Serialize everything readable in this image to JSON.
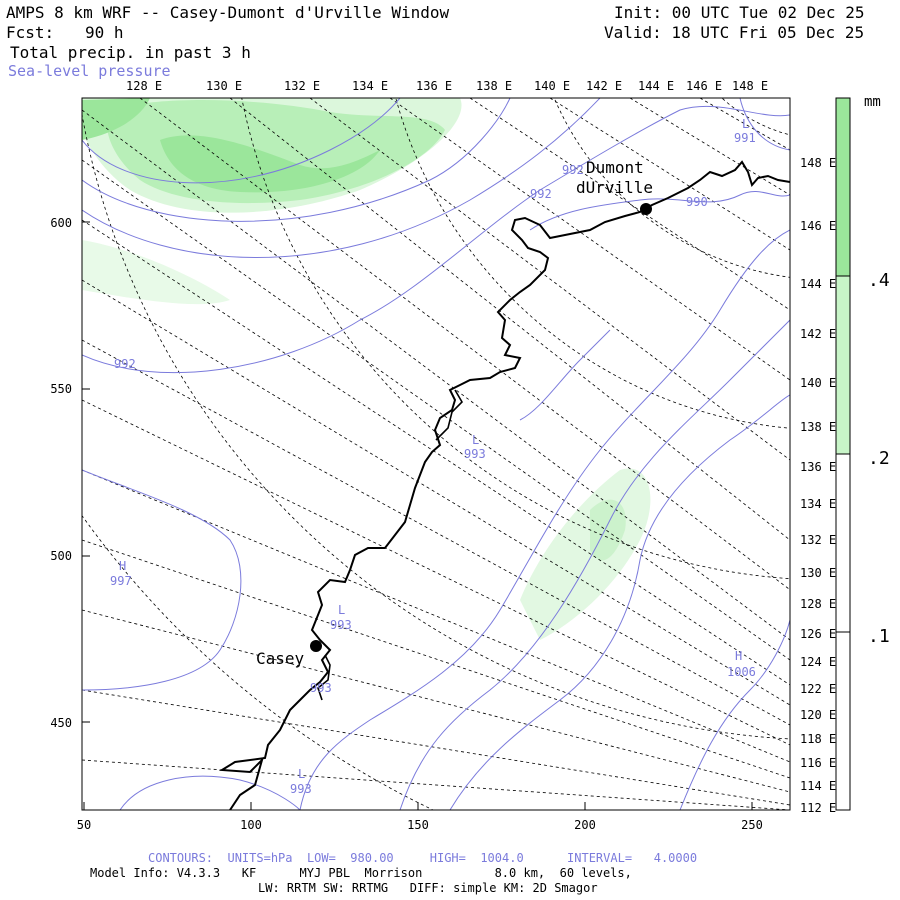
{
  "header": {
    "title": "AMPS 8 km WRF -- Casey-Dumont d'Urville Window",
    "forecast_label": "Fcst:",
    "forecast_value": "90 h",
    "field1": "Total precip. in past 3 h",
    "field2": "Sea-level pressure",
    "init": "Init: 00 UTC Tue 02 Dec 25",
    "valid": "Valid: 18 UTC Fri 05 Dec 25"
  },
  "map": {
    "top_lon_labels": [
      "128 E",
      "130 E",
      "132 E",
      "134 E",
      "136 E",
      "138 E",
      "140 E",
      "142 E",
      "144 E",
      "146 E",
      "148 E"
    ],
    "right_lon_labels": [
      "148 E",
      "146 E",
      "144 E",
      "142 E",
      "140 E",
      "138 E",
      "136 E",
      "134 E",
      "132 E",
      "130 E",
      "128 E",
      "126 E",
      "124 E",
      "122 E",
      "120 E",
      "118 E",
      "116 E",
      "114 E",
      "112 E"
    ],
    "left_y_labels": [
      "600",
      "550",
      "500",
      "450"
    ],
    "bottom_x_labels": [
      "50",
      "100",
      "150",
      "200",
      "250"
    ],
    "stations": [
      {
        "name_line1": "Dumont",
        "name_line2": "dUrville"
      },
      {
        "name_line1": "Casey",
        "name_line2": ""
      }
    ],
    "pressure_labels": [
      "992",
      "992",
      "992",
      "990",
      "991",
      "L",
      "993",
      "L",
      "H",
      "997",
      "993",
      "L",
      "993",
      "L",
      "993",
      "H",
      "1006"
    ]
  },
  "colorbar": {
    "unit": "mm",
    "levels": [
      ".4",
      ".2",
      ".1"
    ],
    "colors": [
      "#9be69b",
      "#c8f5c8",
      "#ffffff"
    ]
  },
  "footer": {
    "contours": "CONTOURS:  UNITS=hPa  LOW=  980.00     HIGH=  1004.0      INTERVAL=   4.0000",
    "model": "Model Info: V4.3.3   KF      MYJ PBL  Morrison          8.0 km,  60 levels,",
    "physics": "LW: RRTM SW: RRTMG   DIFF: simple KM: 2D Smagor"
  }
}
